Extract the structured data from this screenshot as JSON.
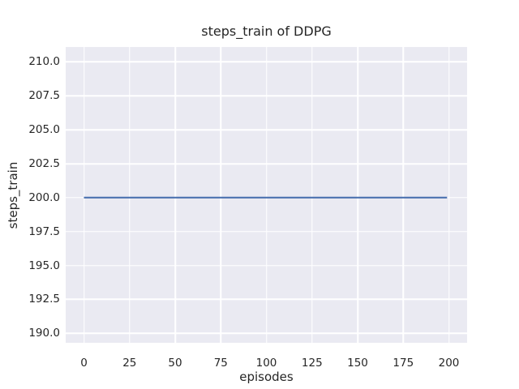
{
  "chart_data": {
    "type": "line",
    "title": "steps_train of DDPG",
    "xlabel": "episodes",
    "ylabel": "steps_train",
    "xlim": [
      -10,
      210
    ],
    "ylim": [
      189.3,
      211.1
    ],
    "xticks": [
      0,
      25,
      50,
      75,
      100,
      125,
      150,
      175,
      200
    ],
    "xtick_labels": [
      "0",
      "25",
      "50",
      "75",
      "100",
      "125",
      "150",
      "175",
      "200"
    ],
    "yticks": [
      190.0,
      192.5,
      195.0,
      197.5,
      200.0,
      202.5,
      205.0,
      207.5,
      210.0
    ],
    "ytick_labels": [
      "190.0",
      "192.5",
      "195.0",
      "197.5",
      "200.0",
      "202.5",
      "205.0",
      "207.5",
      "210.0"
    ],
    "grid": true,
    "legend_position": "none",
    "style": {
      "plot_background": "#eaeaf2",
      "grid_color": "#ffffff",
      "text_color": "#262626",
      "figure_background": "#ffffff"
    },
    "series": [
      {
        "name": "steps_train",
        "color": "#4c72b0",
        "line_width": 2.2,
        "x": [
          0,
          199
        ],
        "y": [
          200,
          200
        ]
      }
    ]
  }
}
